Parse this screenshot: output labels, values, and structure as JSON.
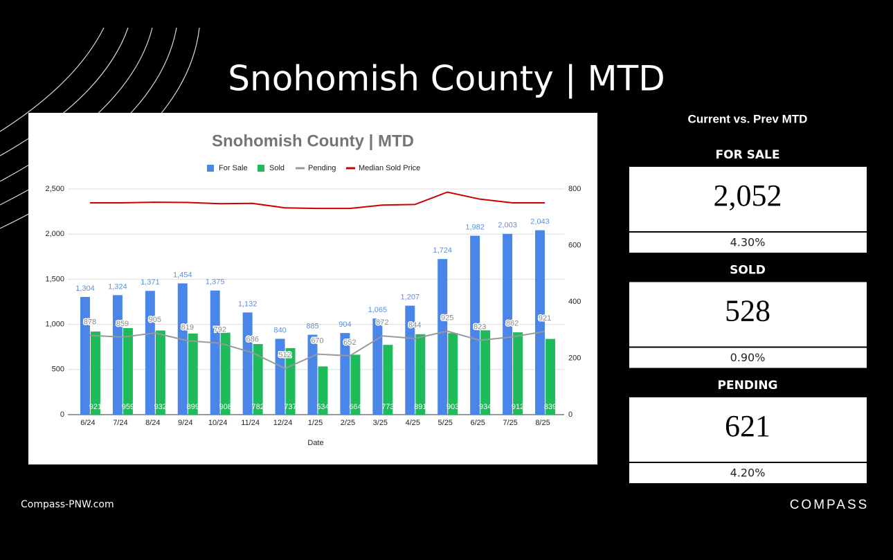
{
  "page": {
    "title": "Snohomish County | MTD",
    "footer": "Compass-PNW.com",
    "logo": "COMPASS"
  },
  "chart_data": {
    "type": "bar",
    "title": "Snohomish County | MTD",
    "x_label": "Date",
    "categories": [
      "6/24",
      "7/24",
      "8/24",
      "9/24",
      "10/24",
      "11/24",
      "12/24",
      "1/25",
      "2/25",
      "3/25",
      "4/25",
      "5/25",
      "6/25",
      "7/25",
      "8/25"
    ],
    "series": [
      {
        "name": "For Sale",
        "type": "bar",
        "color": "#4a86e8",
        "values": [
          1304,
          1324,
          1371,
          1454,
          1375,
          1132,
          840,
          885,
          904,
          1065,
          1207,
          1724,
          1982,
          2003,
          2043
        ],
        "value_labels": [
          "1,304",
          "1,324",
          "1,371",
          "1,454",
          "1,375",
          "1,132",
          "840",
          "885",
          "904",
          "1,065",
          "1,207",
          "1,724",
          "1,982",
          "2,003",
          "2,043"
        ]
      },
      {
        "name": "Sold",
        "type": "bar",
        "color": "#1fbb5b",
        "values": [
          921,
          959,
          932,
          899,
          908,
          782,
          737,
          534,
          664,
          773,
          891,
          903,
          934,
          912,
          839
        ]
      },
      {
        "name": "Pending",
        "type": "line",
        "color": "#999999",
        "values": [
          878,
          859,
          905,
          819,
          792,
          686,
          512,
          670,
          652,
          872,
          844,
          925,
          823,
          862,
          921
        ]
      },
      {
        "name": "Median Sold Price",
        "type": "line",
        "color": "#cc0000",
        "axis": "y2",
        "values": [
          751,
          751,
          753,
          752,
          748,
          749,
          733,
          731,
          731,
          743,
          745,
          789,
          764,
          751,
          751
        ]
      }
    ],
    "ylim": [
      0,
      2500
    ],
    "yticks": [
      0,
      500,
      {
        "value": 1000,
        "label": "1,000"
      },
      {
        "value": 1500,
        "label": "1,500"
      },
      {
        "value": 2000,
        "label": "2,000"
      },
      {
        "value": 2500,
        "label": "2,500"
      }
    ],
    "y2lim": [
      0,
      800
    ],
    "y2ticks": [
      0,
      200,
      400,
      600,
      800
    ],
    "grid": true,
    "legend": "top"
  },
  "panel": {
    "title": "Current vs. Prev MTD",
    "cards": [
      {
        "label": "FOR SALE",
        "value": "2,052",
        "change": "4.30%"
      },
      {
        "label": "SOLD",
        "value": "528",
        "change": "0.90%"
      },
      {
        "label": "PENDING",
        "value": "621",
        "change": "4.20%"
      }
    ]
  }
}
